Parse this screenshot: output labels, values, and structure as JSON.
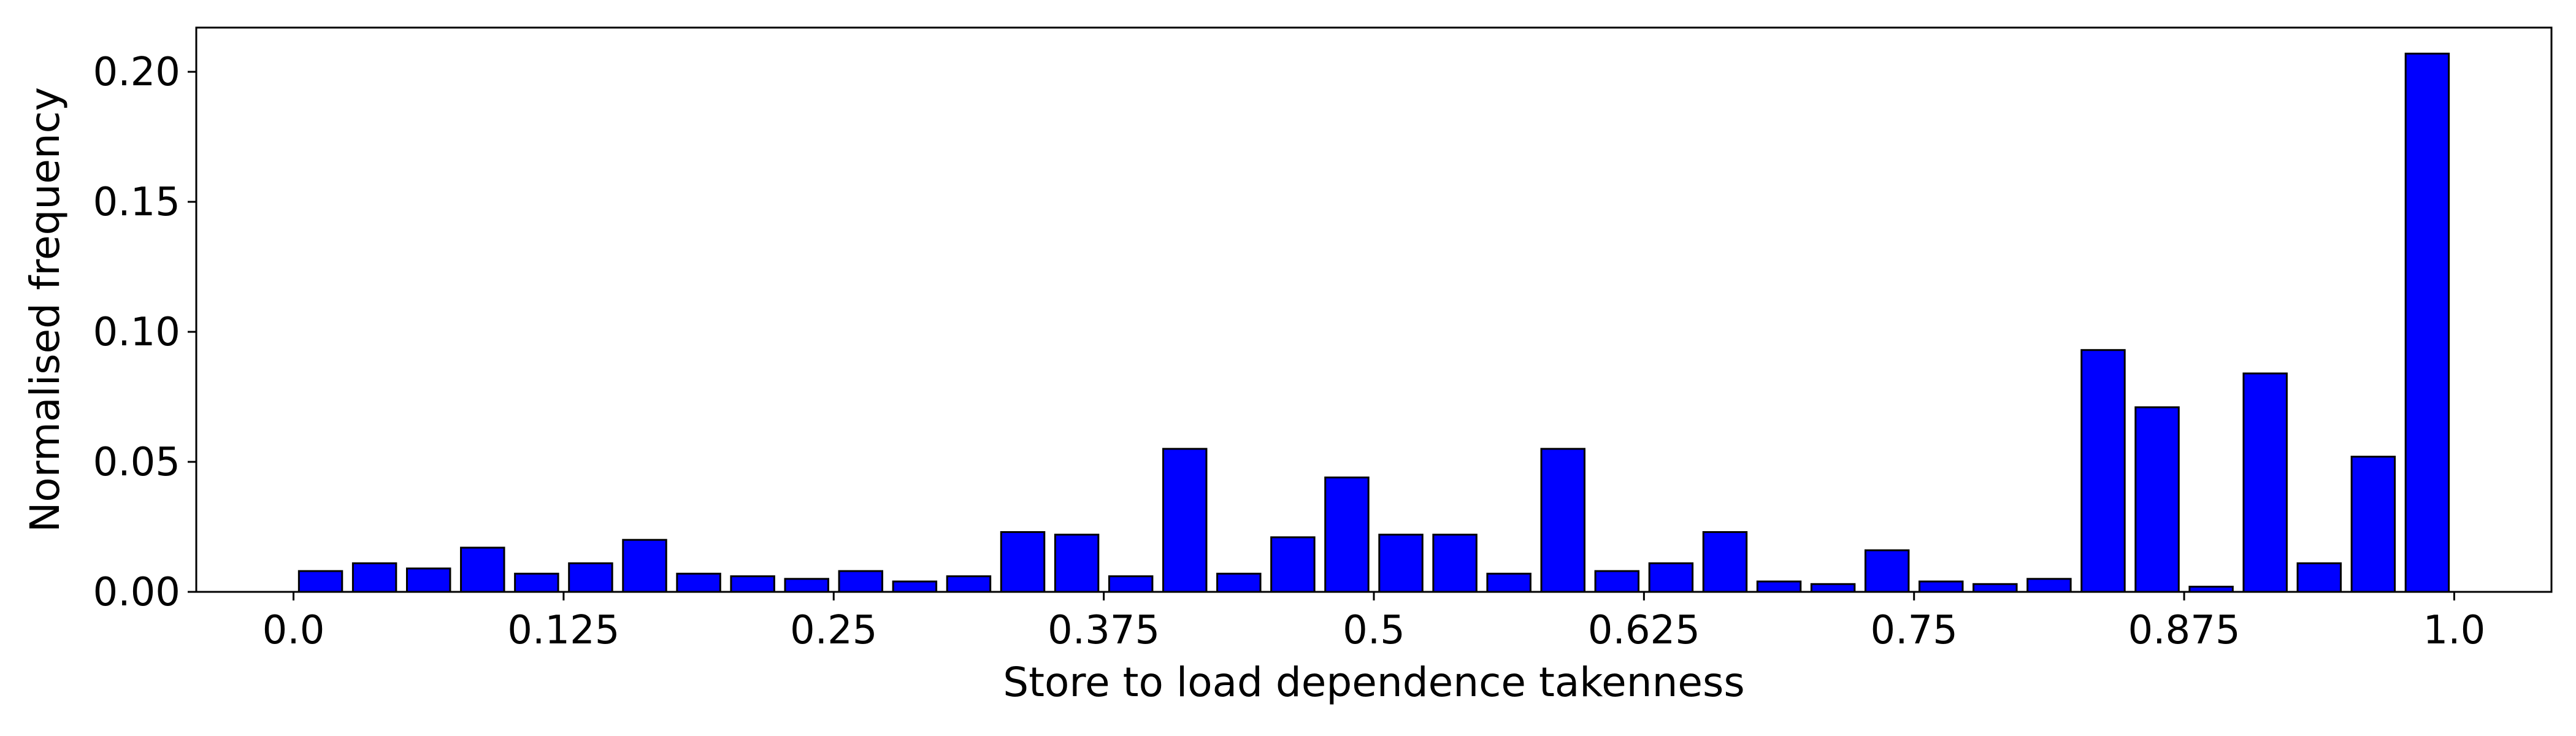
{
  "chart_data": {
    "type": "bar",
    "title": "",
    "xlabel": "Store to load dependence takenness",
    "ylabel": "Normalised frequency",
    "xlim": [
      -0.045,
      1.045
    ],
    "ylim": [
      0.0,
      0.217
    ],
    "x_ticks": [
      {
        "value": 0.0,
        "label": "0.0"
      },
      {
        "value": 0.125,
        "label": "0.125"
      },
      {
        "value": 0.25,
        "label": "0.25"
      },
      {
        "value": 0.375,
        "label": "0.375"
      },
      {
        "value": 0.5,
        "label": "0.5"
      },
      {
        "value": 0.625,
        "label": "0.625"
      },
      {
        "value": 0.75,
        "label": "0.75"
      },
      {
        "value": 0.875,
        "label": "0.875"
      },
      {
        "value": 1.0,
        "label": "1.0"
      }
    ],
    "y_ticks": [
      {
        "value": 0.0,
        "label": "0.00"
      },
      {
        "value": 0.05,
        "label": "0.05"
      },
      {
        "value": 0.1,
        "label": "0.10"
      },
      {
        "value": 0.15,
        "label": "0.15"
      },
      {
        "value": 0.2,
        "label": "0.20"
      }
    ],
    "bar_width": 0.02,
    "x": [
      0.0125,
      0.0375,
      0.0625,
      0.0875,
      0.1125,
      0.1375,
      0.1625,
      0.1875,
      0.2125,
      0.2375,
      0.2625,
      0.2875,
      0.3125,
      0.3375,
      0.3625,
      0.3875,
      0.4125,
      0.4375,
      0.4625,
      0.4875,
      0.5125,
      0.5375,
      0.5625,
      0.5875,
      0.6125,
      0.6375,
      0.6625,
      0.6875,
      0.7125,
      0.7375,
      0.7625,
      0.7875,
      0.8125,
      0.8375,
      0.8625,
      0.8875,
      0.9125,
      0.9375,
      0.9625,
      0.9875
    ],
    "values": [
      0.008,
      0.011,
      0.009,
      0.017,
      0.007,
      0.011,
      0.02,
      0.007,
      0.006,
      0.005,
      0.008,
      0.004,
      0.006,
      0.023,
      0.022,
      0.006,
      0.055,
      0.007,
      0.021,
      0.044,
      0.022,
      0.022,
      0.007,
      0.055,
      0.008,
      0.011,
      0.023,
      0.004,
      0.003,
      0.016,
      0.004,
      0.003,
      0.005,
      0.093,
      0.071,
      0.002,
      0.084,
      0.011,
      0.052,
      0.207
    ],
    "colors": {
      "bar_fill": "#0000ff",
      "bar_edge": "#000000",
      "axis": "#000000"
    },
    "grid": false,
    "legend": "none"
  }
}
